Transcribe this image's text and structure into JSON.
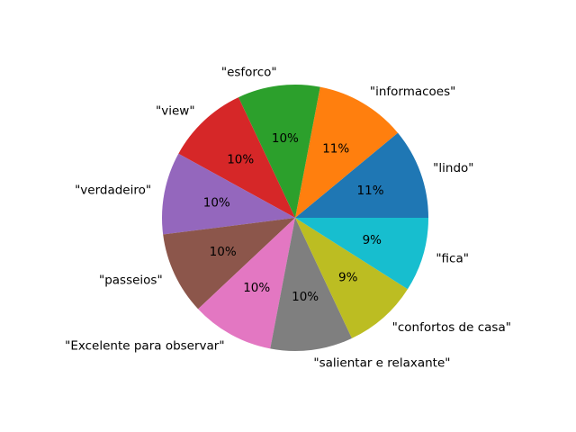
{
  "chart_data": {
    "type": "pie",
    "categories": [
      "\"lindo\"",
      "\"informacoes\"",
      "\"esforco\"",
      "\"view\"",
      "\"verdadeiro\"",
      "\"passeios\"",
      "\"Excelente para observar\"",
      "\"salientar e relaxante\"",
      "\"confortos de casa\"",
      "\"fica\""
    ],
    "values": [
      11,
      11,
      10,
      10,
      10,
      10,
      10,
      10,
      9,
      9
    ],
    "value_labels": [
      "11%",
      "11%",
      "10%",
      "10%",
      "10%",
      "10%",
      "10%",
      "10%",
      "9%",
      "9%"
    ],
    "colors": [
      "#1f77b4",
      "#ff7f0e",
      "#2ca02c",
      "#d62728",
      "#9467bd",
      "#8c564b",
      "#e377c2",
      "#7f7f7f",
      "#bcbd22",
      "#17becf"
    ],
    "start_angle_deg": 0,
    "direction": "counterclockwise",
    "title": ""
  }
}
